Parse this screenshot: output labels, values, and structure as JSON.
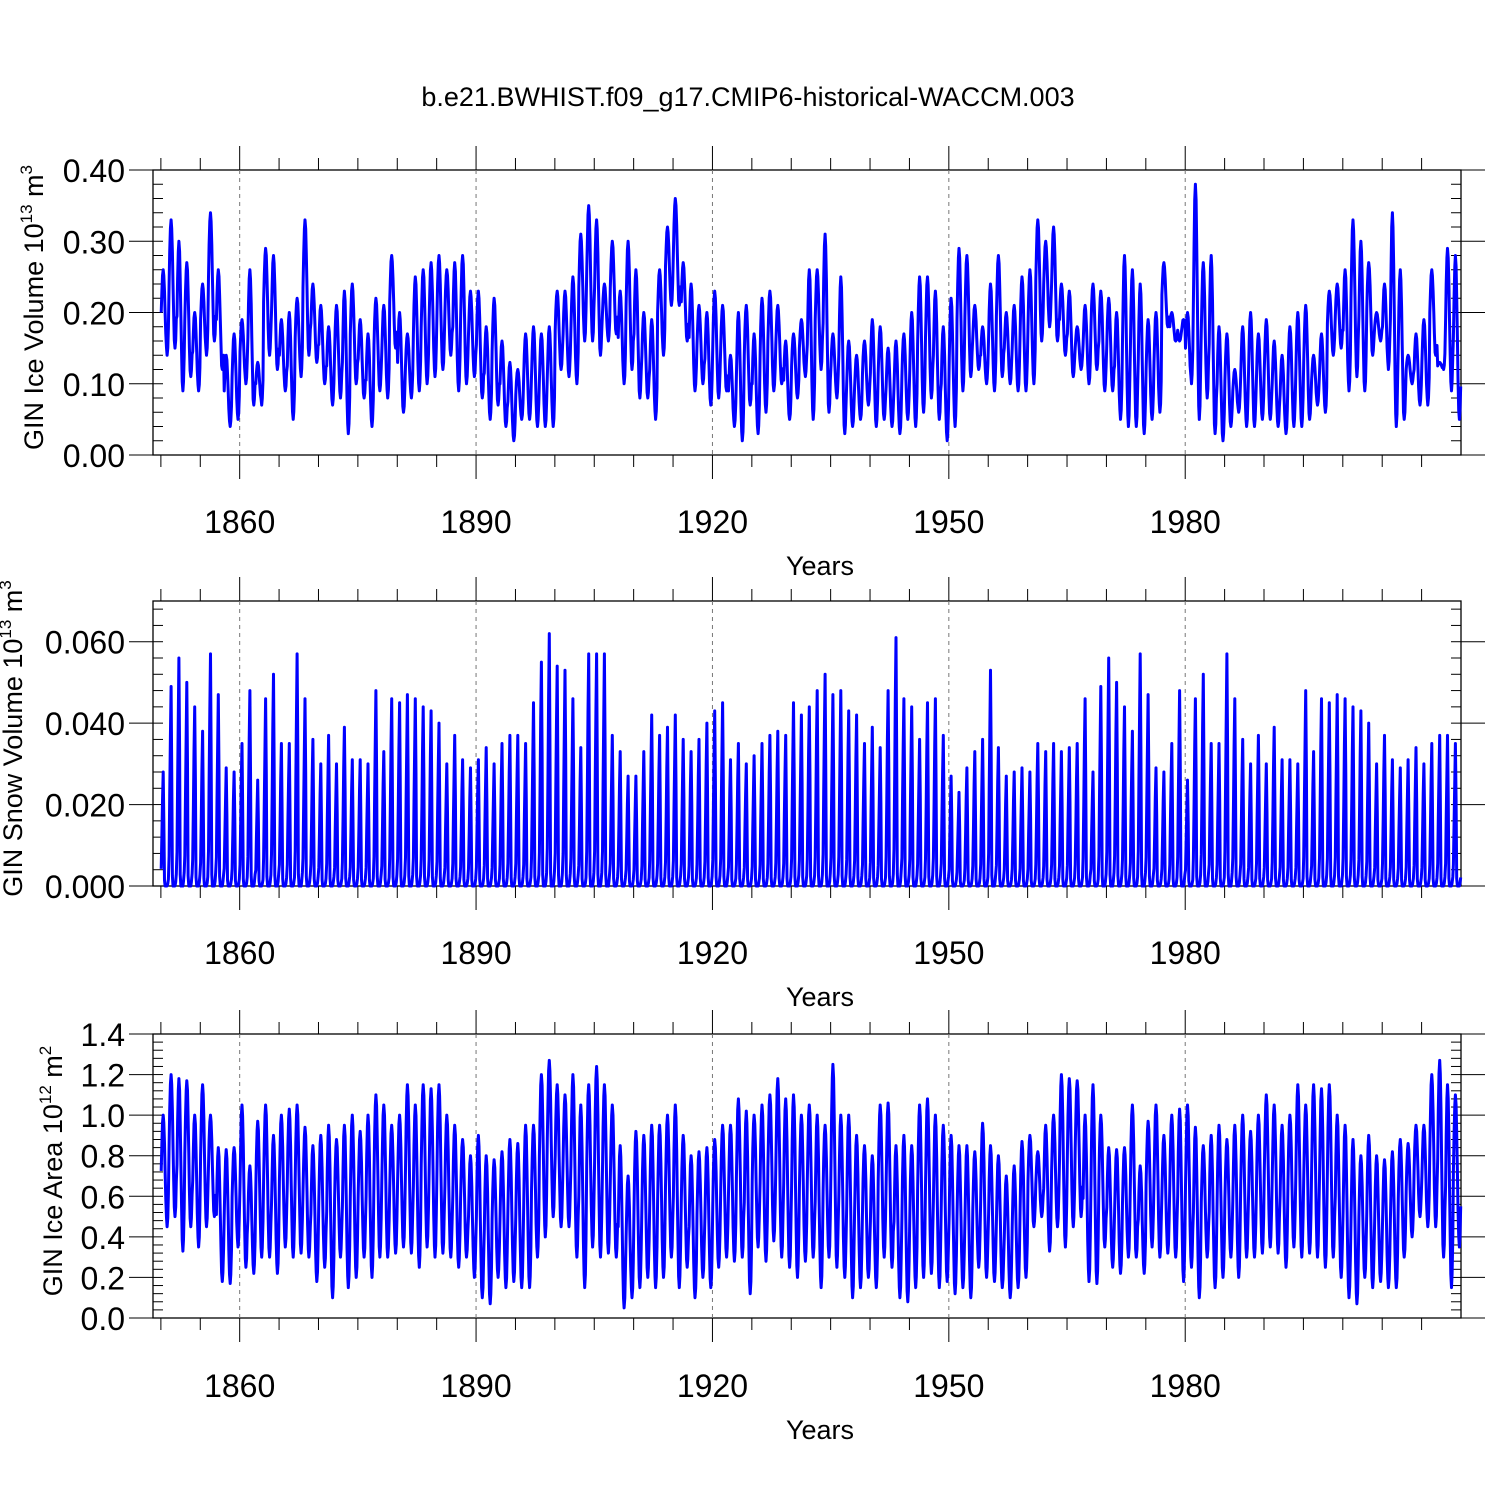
{
  "title": "b.e21.BWHIST.f09_g17.CMIP6-historical-WACCM.003",
  "chart_data": [
    {
      "id": "ice-volume",
      "type": "line",
      "ylabel": "GIN Ice Volume 10",
      "ylabel_exp": "13",
      "ylabel_unit": " m",
      "ylabel_unit_exp": "3",
      "xlabel": "Years",
      "xlim": [
        1849,
        2015
      ],
      "ylim": [
        0,
        0.4
      ],
      "yticks": [
        "0.00",
        "0.10",
        "0.20",
        "0.30",
        "0.40"
      ],
      "ytick_values": [
        0,
        0.1,
        0.2,
        0.3,
        0.4
      ],
      "xticks": [
        "1860",
        "1890",
        "1920",
        "1950",
        "1980"
      ],
      "xtick_values": [
        1860,
        1890,
        1920,
        1950,
        1980
      ],
      "series": [
        {
          "name": "GIN Ice Volume",
          "color": "#0000ff",
          "x_start": 1850,
          "seasonal": "max_late_winter",
          "annual_max": [
            0.26,
            0.33,
            0.3,
            0.27,
            0.2,
            0.24,
            0.34,
            0.26,
            0.14,
            0.17,
            0.19,
            0.26,
            0.13,
            0.29,
            0.28,
            0.19,
            0.2,
            0.22,
            0.33,
            0.24,
            0.21,
            0.18,
            0.21,
            0.23,
            0.24,
            0.19,
            0.17,
            0.22,
            0.21,
            0.28,
            0.2,
            0.17,
            0.25,
            0.26,
            0.27,
            0.28,
            0.26,
            0.27,
            0.28,
            0.23,
            0.23,
            0.18,
            0.22,
            0.16,
            0.13,
            0.12,
            0.17,
            0.18,
            0.17,
            0.18,
            0.23,
            0.23,
            0.25,
            0.31,
            0.35,
            0.33,
            0.24,
            0.3,
            0.23,
            0.3,
            0.26,
            0.2,
            0.19,
            0.26,
            0.32,
            0.36,
            0.27,
            0.24,
            0.21,
            0.2,
            0.23,
            0.21,
            0.14,
            0.2,
            0.21,
            0.17,
            0.22,
            0.23,
            0.21,
            0.16,
            0.17,
            0.19,
            0.26,
            0.26,
            0.31,
            0.17,
            0.25,
            0.16,
            0.14,
            0.16,
            0.19,
            0.18,
            0.15,
            0.16,
            0.17,
            0.2,
            0.25,
            0.25,
            0.23,
            0.18,
            0.22,
            0.29,
            0.28,
            0.21,
            0.18,
            0.24,
            0.28,
            0.2,
            0.21,
            0.25,
            0.26,
            0.33,
            0.3,
            0.32,
            0.24,
            0.23,
            0.18,
            0.21,
            0.24,
            0.23,
            0.22,
            0.2,
            0.28,
            0.26,
            0.24,
            0.19,
            0.2,
            0.27,
            0.2,
            0.16,
            0.2,
            0.38,
            0.27,
            0.28,
            0.18,
            0.17,
            0.12,
            0.18,
            0.2,
            0.17,
            0.19,
            0.16,
            0.14,
            0.18,
            0.2,
            0.21,
            0.14,
            0.17,
            0.23,
            0.24
          ],
          "annual_min": [
            0.14,
            0.15,
            0.09,
            0.11,
            0.09,
            0.14,
            0.16,
            0.12,
            0.04,
            0.05,
            0.1,
            0.07,
            0.07,
            0.14,
            0.12,
            0.09,
            0.05,
            0.11,
            0.14,
            0.13,
            0.1,
            0.07,
            0.08,
            0.03,
            0.1,
            0.08,
            0.04,
            0.09,
            0.08,
            0.15,
            0.06,
            0.08,
            0.09,
            0.1,
            0.11,
            0.12,
            0.14,
            0.09,
            0.1,
            0.11,
            0.08,
            0.05,
            0.07,
            0.04,
            0.02,
            0.05,
            0.05,
            0.04,
            0.04,
            0.04,
            0.12,
            0.11,
            0.1,
            0.16,
            0.16,
            0.14,
            0.16,
            0.17,
            0.1,
            0.12,
            0.08,
            0.08,
            0.05,
            0.14,
            0.21,
            0.21,
            0.16,
            0.09,
            0.1,
            0.07,
            0.08,
            0.09,
            0.04,
            0.02,
            0.07,
            0.03,
            0.06,
            0.09,
            0.1,
            0.05,
            0.08,
            0.11,
            0.05,
            0.12,
            0.06,
            0.08,
            0.03,
            0.04,
            0.05,
            0.07,
            0.04,
            0.05,
            0.04,
            0.03,
            0.05,
            0.04,
            0.06,
            0.08,
            0.05,
            0.02,
            0.04,
            0.09,
            0.11,
            0.12,
            0.1,
            0.09,
            0.11,
            0.1,
            0.09,
            0.09,
            0.1,
            0.16,
            0.18,
            0.16,
            0.14,
            0.11,
            0.12,
            0.1,
            0.12,
            0.09,
            0.09,
            0.05,
            0.04,
            0.04,
            0.03,
            0.05,
            0.06,
            0.18,
            0.16,
            0.19,
            0.1,
            0.05,
            0.08,
            0.03,
            0.02,
            0.04,
            0.06,
            0.04,
            0.04,
            0.05,
            0.05,
            0.04,
            0.03,
            0.04,
            0.04,
            0.05,
            0.07,
            0.06
          ]
        }
      ]
    },
    {
      "id": "snow-volume",
      "type": "line",
      "ylabel": "GIN Snow Volume 10",
      "ylabel_exp": "13",
      "ylabel_unit": " m",
      "ylabel_unit_exp": "3",
      "xlabel": "Years",
      "xlim": [
        1849,
        2015
      ],
      "ylim": [
        0,
        0.07
      ],
      "yticks": [
        "0.000",
        "0.020",
        "0.040",
        "0.060"
      ],
      "ytick_values": [
        0,
        0.02,
        0.04,
        0.06
      ],
      "xticks": [
        "1860",
        "1890",
        "1920",
        "1950",
        "1980"
      ],
      "xtick_values": [
        1860,
        1890,
        1920,
        1950,
        1980
      ],
      "series": [
        {
          "name": "GIN Snow Volume",
          "color": "#0000ff",
          "x_start": 1850,
          "seasonal": "peak_spring_zero_summer",
          "annual_max": [
            0.028,
            0.049,
            0.056,
            0.05,
            0.044,
            0.038,
            0.057,
            0.047,
            0.029,
            0.028,
            0.035,
            0.048,
            0.026,
            0.046,
            0.052,
            0.035,
            0.035,
            0.057,
            0.046,
            0.036,
            0.03,
            0.037,
            0.03,
            0.039,
            0.031,
            0.031,
            0.03,
            0.048,
            0.033,
            0.046,
            0.045,
            0.047,
            0.046,
            0.044,
            0.043,
            0.04,
            0.03,
            0.037,
            0.031,
            0.029,
            0.031,
            0.034,
            0.03,
            0.035,
            0.037,
            0.037,
            0.035,
            0.045,
            0.055,
            0.062,
            0.054,
            0.053,
            0.046,
            0.034,
            0.057,
            0.057,
            0.057,
            0.037,
            0.033,
            0.027,
            0.027,
            0.033,
            0.042,
            0.037,
            0.039,
            0.042,
            0.036,
            0.033,
            0.036,
            0.04,
            0.043,
            0.045,
            0.031,
            0.035,
            0.03,
            0.032,
            0.035,
            0.037,
            0.038,
            0.037,
            0.045,
            0.042,
            0.044,
            0.048,
            0.052,
            0.047,
            0.048,
            0.043,
            0.042,
            0.035,
            0.039,
            0.034,
            0.048,
            0.061,
            0.046,
            0.044,
            0.036,
            0.045,
            0.046,
            0.037,
            0.027,
            0.023,
            0.029,
            0.033,
            0.036,
            0.053,
            0.034,
            0.027,
            0.028,
            0.029,
            0.028,
            0.035,
            0.033,
            0.035,
            0.033,
            0.034,
            0.035,
            0.046
          ],
          "annual_max_note": "values for 1850-2014; remaining years follow the array cyclically"
        }
      ]
    },
    {
      "id": "ice-area",
      "type": "line",
      "ylabel": "GIN Ice Area 10",
      "ylabel_exp": "12",
      "ylabel_unit": " m",
      "ylabel_unit_exp": "2",
      "xlabel": "Years",
      "xlim": [
        1849,
        2015
      ],
      "ylim": [
        0,
        1.4
      ],
      "yticks": [
        "0.0",
        "0.2",
        "0.4",
        "0.6",
        "0.8",
        "1.0",
        "1.2",
        "1.4"
      ],
      "ytick_values": [
        0,
        0.2,
        0.4,
        0.6,
        0.8,
        1.0,
        1.2,
        1.4
      ],
      "xticks": [
        "1860",
        "1890",
        "1920",
        "1950",
        "1980"
      ],
      "xtick_values": [
        1860,
        1890,
        1920,
        1950,
        1980
      ],
      "series": [
        {
          "name": "GIN Ice Area",
          "color": "#0000ff",
          "x_start": 1850,
          "seasonal": "max_late_winter",
          "annual_max": [
            1.0,
            1.2,
            1.18,
            1.17,
            1.0,
            1.15,
            1.0,
            0.84,
            0.83,
            0.84,
            1.05,
            0.75,
            0.97,
            1.05,
            0.9,
            1.0,
            1.03,
            1.05,
            0.94,
            0.85,
            0.9,
            0.95,
            0.88,
            0.95,
            1.0,
            0.92,
            1.0,
            1.1,
            1.05,
            0.95,
            1.0,
            1.15,
            1.05,
            1.15,
            1.13,
            1.15,
            1.0,
            0.95,
            0.88,
            0.8,
            0.9,
            0.8,
            0.78,
            0.82,
            0.88,
            0.86,
            0.95,
            0.95,
            1.2,
            1.27,
            1.15,
            1.1,
            1.2,
            1.05,
            1.15,
            1.24,
            1.15,
            1.05,
            0.85,
            0.7,
            0.92,
            0.9,
            0.95,
            0.95,
            1.0,
            1.05,
            0.9,
            0.8,
            0.82,
            0.84,
            0.88,
            0.95,
            0.95,
            1.08,
            1.02,
            1.0,
            1.05,
            1.1,
            1.18,
            1.08,
            1.1,
            1.0,
            1.05,
            1.0,
            0.95,
            1.25,
            1.0,
            1.0,
            0.9,
            0.85,
            0.8,
            1.05,
            1.06,
            0.85,
            0.9,
            0.85,
            1.05,
            1.08,
            1.0,
            0.95,
            0.9,
            0.85,
            0.85,
            0.82,
            0.96,
            0.85,
            0.8,
            0.7,
            0.75,
            0.87,
            0.9,
            0.82,
            0.95
          ],
          "annual_max_note": "values for 1850-2014; remaining years follow the array cyclically",
          "annual_min": [
            0.45,
            0.5,
            0.33,
            0.45,
            0.35,
            0.45,
            0.5,
            0.18,
            0.17,
            0.35,
            0.25,
            0.22,
            0.3,
            0.3,
            0.22,
            0.35,
            0.3,
            0.32,
            0.3,
            0.18,
            0.25,
            0.1,
            0.3,
            0.15,
            0.2,
            0.3,
            0.2,
            0.3,
            0.3,
            0.32,
            0.35,
            0.32,
            0.25,
            0.35,
            0.3,
            0.32,
            0.3,
            0.25,
            0.3,
            0.2,
            0.1,
            0.07,
            0.2,
            0.15,
            0.18,
            0.15,
            0.15,
            0.3,
            0.4,
            0.5,
            0.45,
            0.45,
            0.3,
            0.15,
            0.35,
            0.3,
            0.32,
            0.3,
            0.05,
            0.1,
            0.15,
            0.2,
            0.15,
            0.2,
            0.3,
            0.15,
            0.25,
            0.1,
            0.2,
            0.15,
            0.25,
            0.3,
            0.28,
            0.3,
            0.12,
            0.35,
            0.28,
            0.38,
            0.3,
            0.25,
            0.2,
            0.28,
            0.3,
            0.15,
            0.3,
            0.25,
            0.2,
            0.1,
            0.15,
            0.2,
            0.15,
            0.3,
            0.25,
            0.1,
            0.08,
            0.15,
            0.2,
            0.22,
            0.15,
            0.18,
            0.12,
            0.15,
            0.1,
            0.25,
            0.2,
            0.18,
            0.15,
            0.1,
            0.15,
            0.2
          ]
        }
      ]
    }
  ]
}
